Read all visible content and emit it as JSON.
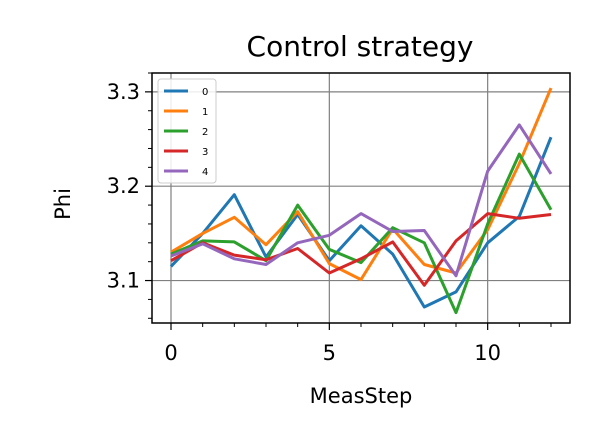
{
  "chart_data": {
    "type": "line",
    "title": "Control strategy",
    "xlabel": "MeasStep",
    "ylabel": "Phi",
    "xlim": [
      -0.6,
      12.6
    ],
    "ylim": [
      3.055,
      3.32
    ],
    "xticks": [
      0,
      5,
      10
    ],
    "xtick_labels": [
      "0",
      "5",
      "10"
    ],
    "yticks": [
      3.1,
      3.2,
      3.3
    ],
    "ytick_labels": [
      "3.1",
      "3.2",
      "3.3"
    ],
    "grid": true,
    "legend_position": "top-left",
    "x": [
      0,
      1,
      2,
      3,
      4,
      5,
      6,
      7,
      8,
      9,
      10,
      11,
      12
    ],
    "series": [
      {
        "name": "0",
        "color": "#1f77b4",
        "values": [
          3.115,
          3.15,
          3.191,
          3.125,
          3.17,
          3.121,
          3.158,
          3.128,
          3.072,
          3.088,
          3.14,
          3.168,
          3.252
        ]
      },
      {
        "name": "1",
        "color": "#ff7f0e",
        "values": [
          3.13,
          3.15,
          3.167,
          3.138,
          3.173,
          3.118,
          3.101,
          3.155,
          3.117,
          3.108,
          3.154,
          3.224,
          3.304
        ]
      },
      {
        "name": "2",
        "color": "#2ca02c",
        "values": [
          3.128,
          3.142,
          3.141,
          3.121,
          3.18,
          3.133,
          3.119,
          3.156,
          3.14,
          3.066,
          3.16,
          3.234,
          3.175
        ]
      },
      {
        "name": "3",
        "color": "#d62728",
        "values": [
          3.121,
          3.14,
          3.127,
          3.122,
          3.134,
          3.108,
          3.123,
          3.141,
          3.095,
          3.142,
          3.171,
          3.166,
          3.17
        ]
      },
      {
        "name": "4",
        "color": "#9467bd",
        "values": [
          3.126,
          3.139,
          3.123,
          3.117,
          3.14,
          3.148,
          3.171,
          3.152,
          3.153,
          3.105,
          3.216,
          3.265,
          3.213
        ]
      }
    ]
  }
}
